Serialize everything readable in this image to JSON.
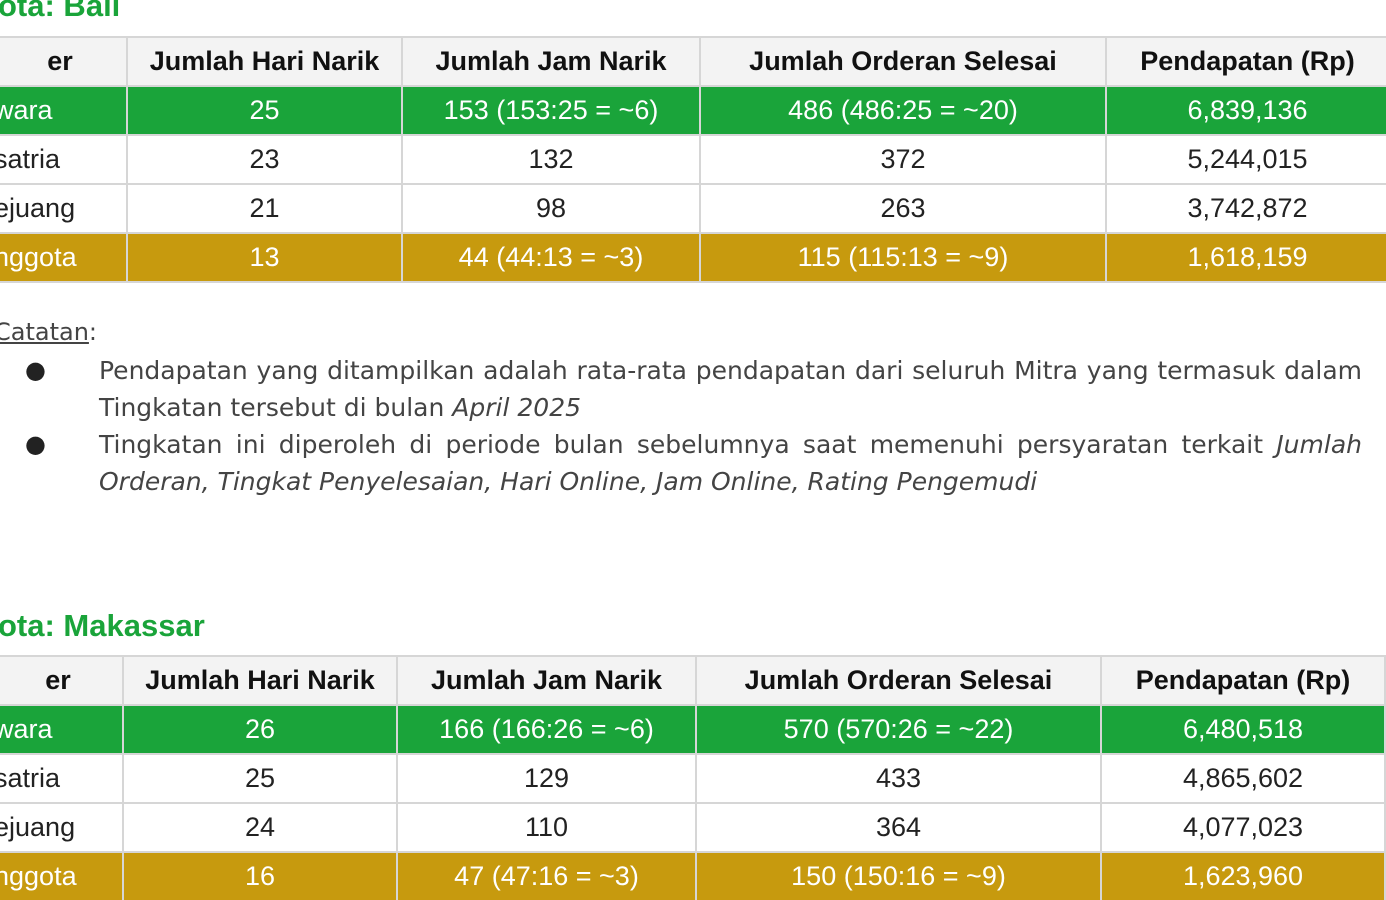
{
  "sections": [
    {
      "title": "ota: Bali",
      "headers": [
        "er",
        "Jumlah Hari Narik",
        "Jumlah Jam Narik",
        "Jumlah Orderan Selesai",
        "Pendapatan (Rp)"
      ],
      "rows": [
        {
          "style": "green",
          "cells": [
            "wara",
            "25",
            "153 (153:25 = ~6)",
            "486 (486:25 = ~20)",
            "6,839,136"
          ]
        },
        {
          "style": "plain",
          "cells": [
            "satria",
            "23",
            "132",
            "372",
            "5,244,015"
          ]
        },
        {
          "style": "plain",
          "cells": [
            "ejuang",
            "21",
            "98",
            "263",
            "3,742,872"
          ]
        },
        {
          "style": "gold",
          "cells": [
            "nggota",
            "13",
            "44 (44:13 = ~3)",
            "115 (115:13 = ~9)",
            "1,618,159"
          ]
        }
      ]
    },
    {
      "title": "ota: Makassar",
      "headers": [
        "er",
        "Jumlah Hari Narik",
        "Jumlah Jam Narik",
        "Jumlah Orderan Selesai",
        "Pendapatan (Rp)"
      ],
      "rows": [
        {
          "style": "green",
          "cells": [
            "wara",
            "26",
            "166 (166:26 = ~6)",
            "570 (570:26 = ~22)",
            "6,480,518"
          ]
        },
        {
          "style": "plain",
          "cells": [
            "satria",
            "25",
            "129",
            "433",
            "4,865,602"
          ]
        },
        {
          "style": "plain",
          "cells": [
            "ejuang",
            "24",
            "110",
            "364",
            "4,077,023"
          ]
        },
        {
          "style": "gold",
          "cells": [
            "nggota",
            "16",
            "47 (47:16 = ~3)",
            "150 (150:16 = ~9)",
            "1,623,960"
          ]
        }
      ]
    }
  ],
  "notes": {
    "label": "Catatan",
    "label_suffix": ":",
    "bullet": "●",
    "items": [
      {
        "text": "Pendapatan yang ditampilkan adalah rata-rata pendapatan dari seluruh Mitra yang termasuk dalam Tingkatan tersebut di bulan ",
        "italic": "April 2025"
      },
      {
        "text": "Tingkatan ini diperoleh di periode bulan sebelumnya saat memenuhi persyaratan terkait ",
        "italic": "Jumlah Orderan, Tingkat Penyelesaian, Hari Online, Jam Online, Rating Pengemudi"
      }
    ]
  },
  "colors": {
    "title_green": "#1aa43a",
    "row_green": "#1aa43a",
    "row_gold": "#c79a0e",
    "header_bg": "#f3f3f3",
    "border": "#d6d6d6"
  }
}
